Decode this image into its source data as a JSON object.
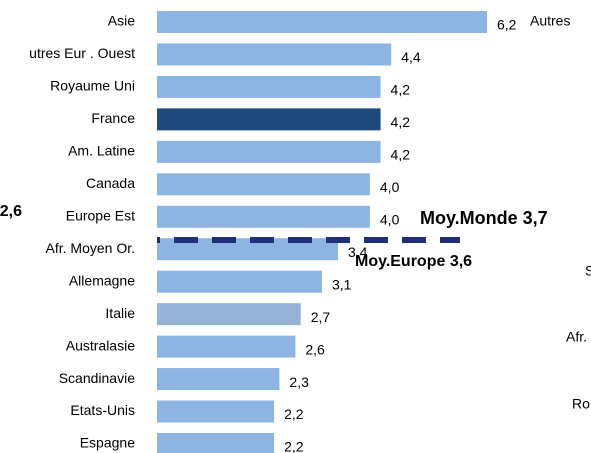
{
  "chart_data": {
    "type": "barh",
    "categories": [
      "Asie",
      "utres Eur . Ouest",
      "Royaume Uni",
      "France",
      "Am. Latine",
      "Canada",
      "Europe Est",
      "Afr. Moyen Or.",
      "Allemagne",
      "Italie",
      "Australasie",
      "Scandinavie",
      "Etats-Unis",
      "Espagne"
    ],
    "values": [
      6.2,
      4.4,
      4.2,
      4.2,
      4.2,
      4.0,
      4.0,
      3.4,
      3.1,
      2.7,
      2.6,
      2.3,
      2.2,
      2.2
    ],
    "value_labels": [
      "6,2",
      "4,4",
      "4,2",
      "4,2",
      "4,2",
      "4,0",
      "4,0",
      "3,4",
      "3,1",
      "2,7",
      "2,6",
      "2,3",
      "2,2",
      "2,2"
    ],
    "colors": [
      "#8db4e2",
      "#8db4e2",
      "#8db4e2",
      "#1f497d",
      "#8db4e2",
      "#8db4e2",
      "#8db4e2",
      "#8db4e2",
      "#8db4e2",
      "#95b3d7",
      "#8db4e2",
      "#8db4e2",
      "#8db4e2",
      "#8db4e2"
    ],
    "xlim": [
      0,
      6.2
    ],
    "annotations": [
      {
        "text": "Moy.Monde 3,7",
        "color": "#1f2f7a"
      },
      {
        "text": "Moy.Europe 3,6",
        "color": "#8db4e2"
      }
    ],
    "cropped_texts": [
      "2,6",
      "Autres",
      "S",
      "Afr.",
      "Ro"
    ]
  }
}
